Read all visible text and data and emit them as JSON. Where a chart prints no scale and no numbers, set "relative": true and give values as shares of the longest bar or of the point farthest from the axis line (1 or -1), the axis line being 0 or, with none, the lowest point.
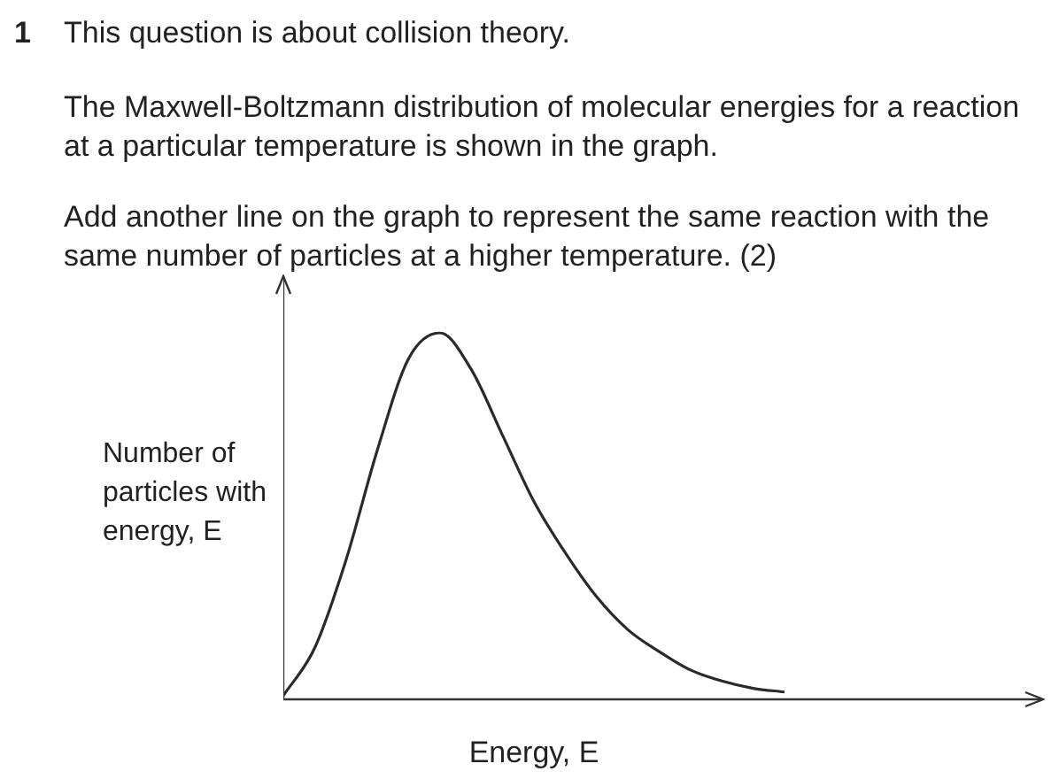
{
  "chart_data": {
    "type": "line",
    "title": "This question is about collision theory.",
    "annotations": [
      "1",
      "The Maxwell-Boltzmann distribution of molecular energies for a reaction at a particular temperature is shown in the graph.",
      "Add another line on the graph to represent the same reaction with the same number of particles at a higher temperature. (2)"
    ],
    "xlabel": "Energy, E",
    "ylabel": "Number of particles with energy, E",
    "relative": true,
    "categories": [
      null,
      null,
      null,
      null,
      null,
      null,
      null,
      null,
      null,
      null,
      null,
      null,
      null,
      null,
      null,
      null,
      null
    ],
    "series": [
      {
        "color": "#2a2a2a",
        "values": [
          0.01,
          0.14,
          0.38,
          0.68,
          0.93,
          1,
          0.9,
          0.72,
          0.54,
          0.4,
          0.28,
          0.19,
          0.13,
          0.08,
          0.05,
          0.03,
          0.02
        ]
      }
    ],
    "grid": false,
    "legend": false,
    "marker": "none",
    "line_style": "solid"
  }
}
